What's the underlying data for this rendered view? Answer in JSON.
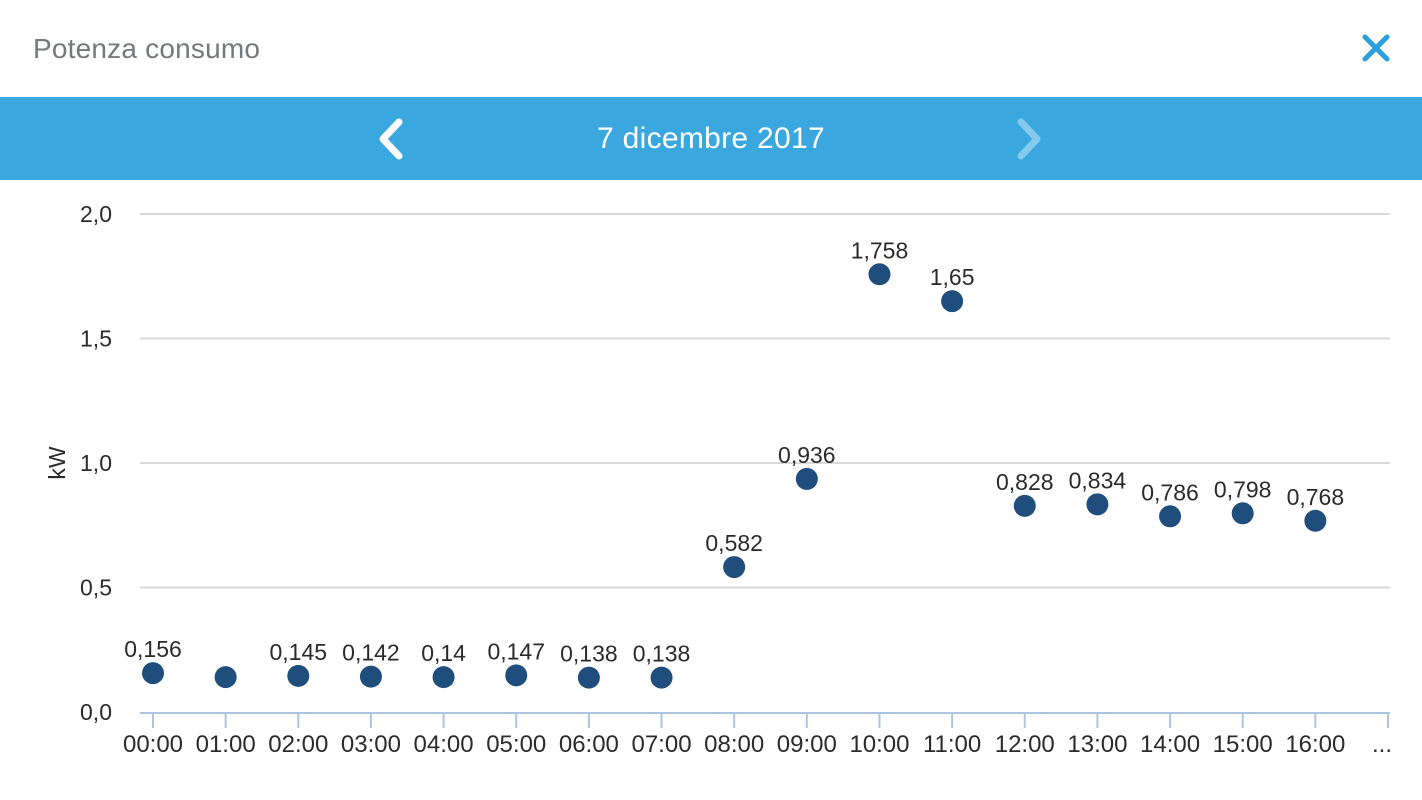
{
  "header": {
    "title": "Potenza consumo"
  },
  "nav": {
    "date_label": "7 dicembre 2017"
  },
  "colors": {
    "nav_bar_blue": "#3AA8DF",
    "close_icon_blue": "#2B9FE0",
    "point_navy": "#1F4E7D",
    "grid_gray": "#D9D9D9",
    "axis_light_blue": "#ADC6E0",
    "label_dark": "#2B2B2B",
    "title_gray": "#75787C"
  },
  "chart_data": {
    "type": "scatter",
    "title": "Potenza consumo",
    "xlabel": "",
    "ylabel": "kW",
    "ylim": [
      0,
      2.0
    ],
    "grid": "horizontal gridlines on",
    "legend": "none",
    "yticks": [
      {
        "value": 0.0,
        "label": "0,0"
      },
      {
        "value": 0.5,
        "label": "0,5"
      },
      {
        "value": 1.0,
        "label": "1,0"
      },
      {
        "value": 1.5,
        "label": "1,5"
      },
      {
        "value": 2.0,
        "label": "2,0"
      }
    ],
    "x_overflow_label": "...",
    "points": [
      {
        "time": "00:00",
        "value": 0.156,
        "label": "0,156"
      },
      {
        "time": "01:00",
        "value": 0.14,
        "label": ""
      },
      {
        "time": "02:00",
        "value": 0.145,
        "label": "0,145"
      },
      {
        "time": "03:00",
        "value": 0.142,
        "label": "0,142"
      },
      {
        "time": "04:00",
        "value": 0.14,
        "label": "0,14"
      },
      {
        "time": "05:00",
        "value": 0.147,
        "label": "0,147"
      },
      {
        "time": "06:00",
        "value": 0.138,
        "label": "0,138"
      },
      {
        "time": "07:00",
        "value": 0.138,
        "label": "0,138"
      },
      {
        "time": "08:00",
        "value": 0.582,
        "label": "0,582"
      },
      {
        "time": "09:00",
        "value": 0.936,
        "label": "0,936"
      },
      {
        "time": "10:00",
        "value": 1.758,
        "label": "1,758"
      },
      {
        "time": "11:00",
        "value": 1.65,
        "label": "1,65"
      },
      {
        "time": "12:00",
        "value": 0.828,
        "label": "0,828"
      },
      {
        "time": "13:00",
        "value": 0.834,
        "label": "0,834"
      },
      {
        "time": "14:00",
        "value": 0.786,
        "label": "0,786"
      },
      {
        "time": "15:00",
        "value": 0.798,
        "label": "0,798"
      },
      {
        "time": "16:00",
        "value": 0.768,
        "label": "0,768"
      }
    ]
  }
}
